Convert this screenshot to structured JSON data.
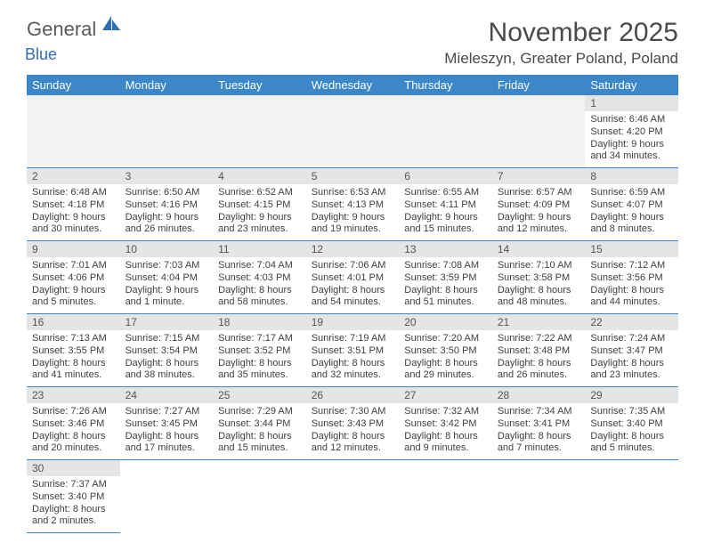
{
  "brand": {
    "text1": "General",
    "text2": "Blue"
  },
  "title": "November 2025",
  "location": "Mieleszyn, Greater Poland, Poland",
  "colors": {
    "header_bg": "#3b87c8",
    "header_fg": "#ffffff",
    "daynum_bg": "#e5e5e5",
    "row_border": "#3b87c8",
    "text": "#404040",
    "title": "#4a4a4a",
    "brand_gray": "#5a5a5a",
    "brand_blue": "#2e6fb5",
    "blank_bg": "#f2f2f2"
  },
  "weekdays": [
    "Sunday",
    "Monday",
    "Tuesday",
    "Wednesday",
    "Thursday",
    "Friday",
    "Saturday"
  ],
  "weeks": [
    [
      null,
      null,
      null,
      null,
      null,
      null,
      {
        "n": "1",
        "sunrise": "6:46 AM",
        "sunset": "4:20 PM",
        "daylight": "9 hours and 34 minutes."
      }
    ],
    [
      {
        "n": "2",
        "sunrise": "6:48 AM",
        "sunset": "4:18 PM",
        "daylight": "9 hours and 30 minutes."
      },
      {
        "n": "3",
        "sunrise": "6:50 AM",
        "sunset": "4:16 PM",
        "daylight": "9 hours and 26 minutes."
      },
      {
        "n": "4",
        "sunrise": "6:52 AM",
        "sunset": "4:15 PM",
        "daylight": "9 hours and 23 minutes."
      },
      {
        "n": "5",
        "sunrise": "6:53 AM",
        "sunset": "4:13 PM",
        "daylight": "9 hours and 19 minutes."
      },
      {
        "n": "6",
        "sunrise": "6:55 AM",
        "sunset": "4:11 PM",
        "daylight": "9 hours and 15 minutes."
      },
      {
        "n": "7",
        "sunrise": "6:57 AM",
        "sunset": "4:09 PM",
        "daylight": "9 hours and 12 minutes."
      },
      {
        "n": "8",
        "sunrise": "6:59 AM",
        "sunset": "4:07 PM",
        "daylight": "9 hours and 8 minutes."
      }
    ],
    [
      {
        "n": "9",
        "sunrise": "7:01 AM",
        "sunset": "4:06 PM",
        "daylight": "9 hours and 5 minutes."
      },
      {
        "n": "10",
        "sunrise": "7:03 AM",
        "sunset": "4:04 PM",
        "daylight": "9 hours and 1 minute."
      },
      {
        "n": "11",
        "sunrise": "7:04 AM",
        "sunset": "4:03 PM",
        "daylight": "8 hours and 58 minutes."
      },
      {
        "n": "12",
        "sunrise": "7:06 AM",
        "sunset": "4:01 PM",
        "daylight": "8 hours and 54 minutes."
      },
      {
        "n": "13",
        "sunrise": "7:08 AM",
        "sunset": "3:59 PM",
        "daylight": "8 hours and 51 minutes."
      },
      {
        "n": "14",
        "sunrise": "7:10 AM",
        "sunset": "3:58 PM",
        "daylight": "8 hours and 48 minutes."
      },
      {
        "n": "15",
        "sunrise": "7:12 AM",
        "sunset": "3:56 PM",
        "daylight": "8 hours and 44 minutes."
      }
    ],
    [
      {
        "n": "16",
        "sunrise": "7:13 AM",
        "sunset": "3:55 PM",
        "daylight": "8 hours and 41 minutes."
      },
      {
        "n": "17",
        "sunrise": "7:15 AM",
        "sunset": "3:54 PM",
        "daylight": "8 hours and 38 minutes."
      },
      {
        "n": "18",
        "sunrise": "7:17 AM",
        "sunset": "3:52 PM",
        "daylight": "8 hours and 35 minutes."
      },
      {
        "n": "19",
        "sunrise": "7:19 AM",
        "sunset": "3:51 PM",
        "daylight": "8 hours and 32 minutes."
      },
      {
        "n": "20",
        "sunrise": "7:20 AM",
        "sunset": "3:50 PM",
        "daylight": "8 hours and 29 minutes."
      },
      {
        "n": "21",
        "sunrise": "7:22 AM",
        "sunset": "3:48 PM",
        "daylight": "8 hours and 26 minutes."
      },
      {
        "n": "22",
        "sunrise": "7:24 AM",
        "sunset": "3:47 PM",
        "daylight": "8 hours and 23 minutes."
      }
    ],
    [
      {
        "n": "23",
        "sunrise": "7:26 AM",
        "sunset": "3:46 PM",
        "daylight": "8 hours and 20 minutes."
      },
      {
        "n": "24",
        "sunrise": "7:27 AM",
        "sunset": "3:45 PM",
        "daylight": "8 hours and 17 minutes."
      },
      {
        "n": "25",
        "sunrise": "7:29 AM",
        "sunset": "3:44 PM",
        "daylight": "8 hours and 15 minutes."
      },
      {
        "n": "26",
        "sunrise": "7:30 AM",
        "sunset": "3:43 PM",
        "daylight": "8 hours and 12 minutes."
      },
      {
        "n": "27",
        "sunrise": "7:32 AM",
        "sunset": "3:42 PM",
        "daylight": "8 hours and 9 minutes."
      },
      {
        "n": "28",
        "sunrise": "7:34 AM",
        "sunset": "3:41 PM",
        "daylight": "8 hours and 7 minutes."
      },
      {
        "n": "29",
        "sunrise": "7:35 AM",
        "sunset": "3:40 PM",
        "daylight": "8 hours and 5 minutes."
      }
    ],
    [
      {
        "n": "30",
        "sunrise": "7:37 AM",
        "sunset": "3:40 PM",
        "daylight": "8 hours and 2 minutes."
      },
      null,
      null,
      null,
      null,
      null,
      null
    ]
  ],
  "labels": {
    "sunrise": "Sunrise:",
    "sunset": "Sunset:",
    "daylight": "Daylight:"
  }
}
